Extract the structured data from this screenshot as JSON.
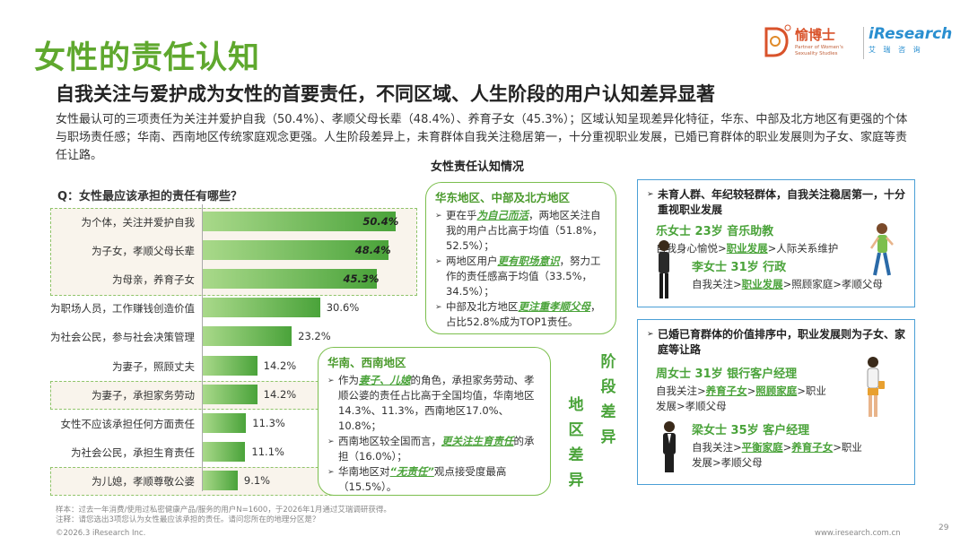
{
  "header": {
    "title": "女性的责任认知",
    "subtitle": "自我关注与爱护成为女性的首要责任，不同区域、人生阶段的用户认知差异显著",
    "description": "女性最认可的三项责任为关注并爱护自我（50.4%）、孝顺父母长辈（48.4%）、养育子女（45.3%）；区域认知呈现差异化特征，华东、中部及北方地区有更强的个体与职场责任感；华南、西南地区传统家庭观念更强。人生阶段差异上，未育群体自我关注稳居第一，十分重视职业发展，已婚已育群体的职业发展则为子女、家庭等责任让路。"
  },
  "brand": {
    "logo_text": "愉博士",
    "logo_sub": "Partner of Women's Sexuality Studies",
    "ir_text": "iResearch",
    "ir_sub": "艾 瑞 咨 询",
    "accent": "#5fa82e",
    "blue": "#2a8fd0"
  },
  "chart_data": {
    "type": "bar",
    "title": "Q：女性最应该承担的责任有哪些？",
    "categories": [
      "为个体，关注并爱护自我",
      "为子女，孝顺父母长辈",
      "为母亲，养育子女",
      "为职场人员，工作赚钱创造价值",
      "为社会公民，参与社会决策管理",
      "为妻子，照顾丈夫",
      "为妻子，承担家务劳动",
      "女性不应该承担任何方面责任",
      "为社会公民，承担生育责任",
      "为儿媳，孝顺尊敬公婆"
    ],
    "values": [
      50.4,
      48.4,
      45.3,
      30.6,
      23.2,
      14.2,
      14.2,
      11.3,
      11.1,
      9.1
    ],
    "labels": [
      "50.4%",
      "48.4%",
      "45.3%",
      "30.6%",
      "23.2%",
      "14.2%",
      "14.2%",
      "11.3%",
      "11.1%",
      "9.1%"
    ],
    "unit": "%",
    "highlighted": [
      0,
      1,
      2,
      6,
      9
    ],
    "xlim": [
      0,
      55
    ]
  },
  "center_title": "女性责任认知情况",
  "region_east": {
    "heading": "华东地区、中部及北方地区",
    "items": [
      {
        "pre": "更在乎",
        "hl": "为自己而活",
        "post": "，两地区关注自我的用户占比高于均值（51.8%，52.5%）；"
      },
      {
        "pre": "两地区用户",
        "hl": "更有职场意识",
        "post": "，努力工作的责任感高于均值（33.5%，34.5%）；"
      },
      {
        "pre": "中部及北方地区",
        "hl": "更注重孝顺父母",
        "post": "，占比52.8%成为TOP1责任。"
      }
    ]
  },
  "region_south": {
    "heading": "华南、西南地区",
    "items": [
      {
        "pre": "作为",
        "hl": "妻子、儿媳",
        "post": "的角色，承担家务劳动、孝顺公婆的责任占比高于全国均值，华南地区14.3%、11.3%，西南地区17.0%、10.8%；"
      },
      {
        "pre": "西南地区较全国而言，",
        "hl": "更关注生育责任",
        "post": "的承担（16.0%）；"
      },
      {
        "pre": "华南地区对",
        "hl": "“无责任”",
        "post": "观点接受度最高（15.5%）。"
      }
    ]
  },
  "labels": {
    "region_diff": "地区差异",
    "stage_diff": "阶段差异"
  },
  "stage_unmarried": {
    "heading": "未育人群、年纪较轻群体，自我关注稳居第一，十分重视职业发展",
    "person1": {
      "name": "乐女士  23岁  音乐助教",
      "path_parts": [
        {
          "t": "自我身心愉悦>",
          "g": false
        },
        {
          "t": "职业发展",
          "g": true
        },
        {
          "t": ">人际关系维护",
          "g": false
        }
      ]
    },
    "person2": {
      "name": "李女士  31岁  行政",
      "path_parts": [
        {
          "t": "自我关注>",
          "g": false
        },
        {
          "t": "职业发展",
          "g": true
        },
        {
          "t": ">照顾家庭>孝顺父母",
          "g": false
        }
      ]
    }
  },
  "stage_married": {
    "heading": "已婚已育群体的价值排序中，职业发展则为子女、家庭等让路",
    "person1": {
      "name": "周女士  31岁  银行客户经理",
      "path_parts": [
        {
          "t": "自我关注>",
          "g": false
        },
        {
          "t": "养育子女",
          "g": true
        },
        {
          "t": ">",
          "g": false
        },
        {
          "t": "照顾家庭",
          "g": true
        },
        {
          "t": ">职业发展>孝顺父母",
          "g": false
        }
      ]
    },
    "person2": {
      "name": "梁女士  35岁  客户经理",
      "path_parts": [
        {
          "t": "自我关注>",
          "g": false
        },
        {
          "t": "平衡家庭",
          "g": true
        },
        {
          "t": ">",
          "g": false
        },
        {
          "t": "养育子女",
          "g": true
        },
        {
          "t": ">职业发展>孝顺父母",
          "g": false
        }
      ]
    }
  },
  "footer": {
    "note1": "样本：过去一年消费/使用过私密健康产品/服务的用户N=1600，于2026年1月通过艾瑞调研获得。",
    "note2": "注释：请您选出3项您认为女性最应该承担的责任。请问您所在的地理分区是？",
    "copyright": "©2026.3 iResearch Inc.",
    "site": "www.iresearch.com.cn",
    "page": "29"
  }
}
